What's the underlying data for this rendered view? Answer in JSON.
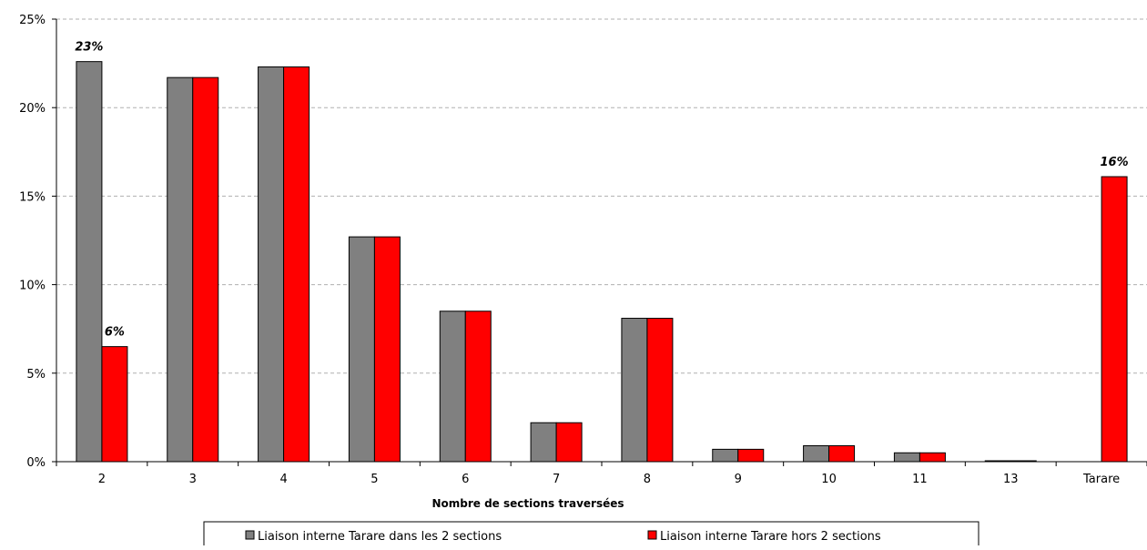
{
  "chart_data": {
    "type": "bar",
    "categories": [
      "2",
      "3",
      "4",
      "5",
      "6",
      "7",
      "8",
      "9",
      "10",
      "11",
      "13",
      "Tarare"
    ],
    "series": [
      {
        "name": "Liaison interne Tarare dans les 2 sections",
        "color": "#808080",
        "values": [
          22.6,
          21.7,
          22.3,
          12.7,
          8.5,
          2.2,
          8.1,
          0.7,
          0.9,
          0.5,
          0.05,
          null
        ]
      },
      {
        "name": "Liaison interne Tarare hors 2 sections",
        "color": "#ff0000",
        "values": [
          6.5,
          21.7,
          22.3,
          12.7,
          8.5,
          2.2,
          8.1,
          0.7,
          0.9,
          0.5,
          0.0,
          16.1
        ]
      }
    ],
    "data_labels": [
      {
        "series": 0,
        "category": "2",
        "text": "23%"
      },
      {
        "series": 1,
        "category": "2",
        "text": "6%"
      },
      {
        "series": 1,
        "category": "Tarare",
        "text": "16%"
      }
    ],
    "y_ticks": [
      "0%",
      "5%",
      "10%",
      "15%",
      "20%",
      "25%"
    ],
    "ylim": [
      0,
      25
    ],
    "xlabel": "Nombre de sections traversées",
    "ylabel": "",
    "title": "",
    "grid": true,
    "legend_position": "bottom"
  }
}
